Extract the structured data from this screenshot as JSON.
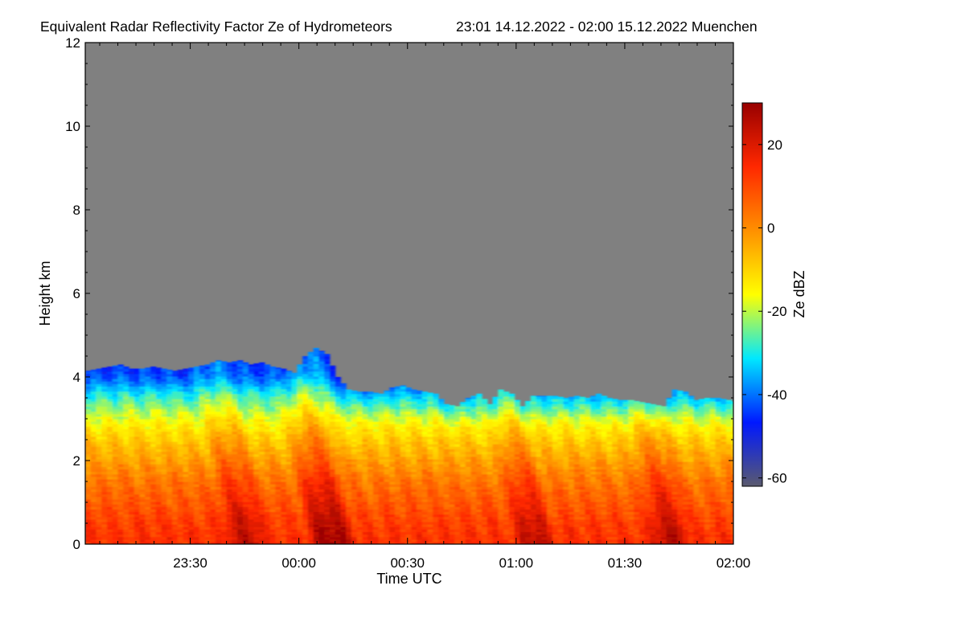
{
  "chart_data": {
    "type": "heatmap",
    "title": "Equivalent Radar Reflectivity Factor Ze of Hydrometeors",
    "subtitle": "23:01 14.12.2022 - 02:00 15.12.2022 Muenchen",
    "xlabel": "Time UTC",
    "ylabel": "Height km",
    "x_range": [
      "23:01",
      "02:00"
    ],
    "x_ticks": [
      "23:30",
      "00:00",
      "00:30",
      "01:00",
      "01:30",
      "02:00"
    ],
    "x_tick_minutes": [
      29,
      59,
      89,
      119,
      149,
      179
    ],
    "x_span_minutes": 179,
    "ylim": [
      0,
      12
    ],
    "y_ticks": [
      0,
      2,
      4,
      6,
      8,
      10,
      12
    ],
    "background_color": "#808080",
    "colorbar": {
      "label": "Ze dBZ",
      "range": [
        -62,
        30
      ],
      "ticks": [
        20,
        0,
        -20,
        -40,
        -60
      ],
      "colors": [
        "#5a5a6e",
        "#0018ff",
        "#00e8ff",
        "#ffff00",
        "#ff9000",
        "#ff2800",
        "#980000"
      ]
    },
    "echo_top_km": {
      "time_minutes": [
        0,
        3,
        6,
        9,
        12,
        15,
        18,
        21,
        24,
        27,
        30,
        33,
        36,
        39,
        42,
        45,
        48,
        51,
        54,
        57,
        60,
        63,
        66,
        69,
        72,
        75,
        78,
        81,
        84,
        87,
        90,
        93,
        96,
        99,
        102,
        105,
        108,
        111,
        114,
        117,
        120,
        123,
        126,
        129,
        132,
        135,
        138,
        141,
        144,
        147,
        150,
        153,
        156,
        159,
        162,
        165,
        168,
        171,
        174,
        177,
        179
      ],
      "height": [
        4.15,
        4.2,
        4.25,
        4.3,
        4.2,
        4.2,
        4.25,
        4.2,
        4.15,
        4.2,
        4.25,
        4.3,
        4.4,
        4.35,
        4.4,
        4.3,
        4.35,
        4.25,
        4.2,
        4.1,
        4.5,
        4.7,
        4.55,
        4.0,
        3.7,
        3.65,
        3.65,
        3.6,
        3.75,
        3.8,
        3.7,
        3.65,
        3.6,
        3.35,
        3.3,
        3.5,
        3.6,
        3.35,
        3.7,
        3.6,
        3.3,
        3.55,
        3.55,
        3.55,
        3.5,
        3.55,
        3.5,
        3.6,
        3.5,
        3.45,
        3.45,
        3.4,
        3.35,
        3.3,
        3.7,
        3.65,
        3.45,
        3.5,
        3.5,
        3.45,
        3.4
      ]
    },
    "reflectivity_dbz_profile": {
      "height_km": [
        0,
        0.5,
        1.0,
        1.5,
        2.0,
        2.5,
        3.0,
        3.5,
        4.0
      ],
      "ze_dbz": [
        12,
        10,
        6,
        2,
        -4,
        -10,
        -18,
        -28,
        -38
      ]
    },
    "intense_fallstreaks": [
      {
        "start_minutes": 40,
        "end_minutes": 48,
        "peak_dbz": 15
      },
      {
        "start_minutes": 63,
        "end_minutes": 72,
        "peak_dbz": 20
      },
      {
        "start_minutes": 120,
        "end_minutes": 127,
        "peak_dbz": 16
      },
      {
        "start_minutes": 157,
        "end_minutes": 165,
        "peak_dbz": 16
      }
    ]
  }
}
